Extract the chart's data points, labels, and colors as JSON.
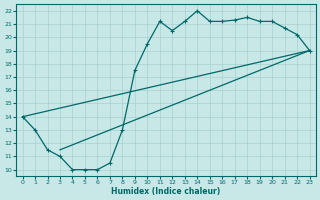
{
  "xlabel": "Humidex (Indice chaleur)",
  "bg_color": "#c8e8e8",
  "grid_color": "#a8d0d0",
  "line_color": "#006868",
  "xlim": [
    -0.5,
    23.5
  ],
  "ylim": [
    9.5,
    22.5
  ],
  "xticks": [
    0,
    1,
    2,
    3,
    4,
    5,
    6,
    7,
    8,
    9,
    10,
    11,
    12,
    13,
    14,
    15,
    16,
    17,
    18,
    19,
    20,
    21,
    22,
    23
  ],
  "yticks": [
    10,
    11,
    12,
    13,
    14,
    15,
    16,
    17,
    18,
    19,
    20,
    21,
    22
  ],
  "line1_x": [
    0,
    1,
    2,
    3,
    4,
    5,
    6,
    7,
    8,
    9,
    10,
    11,
    12,
    13,
    14,
    15,
    16,
    17,
    18,
    19,
    20,
    21,
    22,
    23
  ],
  "line1_y": [
    14,
    13,
    11.5,
    11,
    10,
    10,
    10,
    10.5,
    13,
    17.5,
    19.5,
    21.2,
    20.5,
    21.2,
    22.0,
    21.2,
    21.2,
    21.3,
    21.5,
    21.2,
    21.2,
    20.7,
    20.2,
    19.0
  ],
  "line2_x": [
    0,
    23
  ],
  "line2_y": [
    14,
    19.0
  ],
  "line3_x": [
    3,
    23
  ],
  "line3_y": [
    11.5,
    19.0
  ]
}
